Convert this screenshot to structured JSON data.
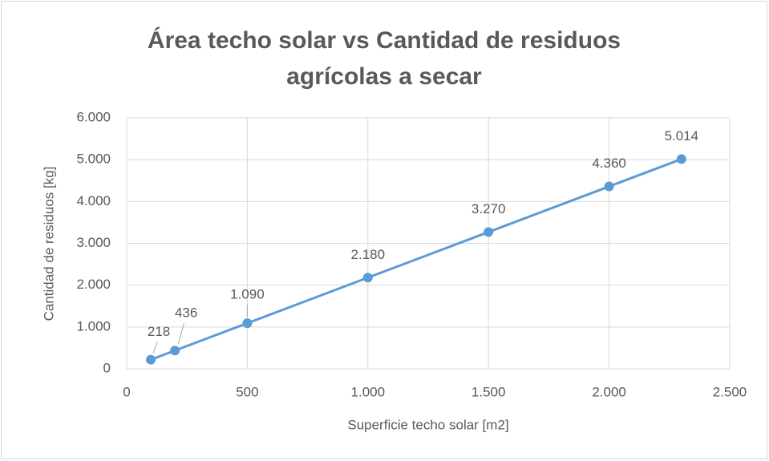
{
  "chart_data": {
    "type": "line",
    "title": [
      "Área techo solar vs Cantidad de residuos",
      "agrícolas a secar"
    ],
    "x_label": "Superficie techo solar [m2]",
    "y_label": "Cantidad de residuos [kg]",
    "x": [
      100,
      200,
      500,
      1000,
      1500,
      2000,
      2300
    ],
    "series": [
      {
        "name": "Cantidad de residuos",
        "color": "#5b9bd5",
        "values": [
          218,
          436,
          1090,
          2180,
          3270,
          4360,
          5014
        ],
        "value_labels": [
          "218",
          "436",
          "1.090",
          "2.180",
          "3.270",
          "4.360",
          "5.014"
        ]
      }
    ],
    "xlim": [
      0,
      2500
    ],
    "xticks": [
      0,
      500,
      {
        "value": 1000,
        "label": "1.000"
      },
      {
        "value": 1500,
        "label": "1.500"
      },
      {
        "value": 2000,
        "label": "2.000"
      },
      {
        "value": 2500,
        "label": "2.500"
      }
    ],
    "ylim": [
      0,
      6000
    ],
    "yticks": [
      0,
      {
        "value": 1000,
        "label": "1.000"
      },
      {
        "value": 2000,
        "label": "2.000"
      },
      {
        "value": 3000,
        "label": "3.000"
      },
      {
        "value": 4000,
        "label": "4.000"
      },
      {
        "value": 5000,
        "label": "5.000"
      },
      {
        "value": 6000,
        "label": "6.000"
      }
    ],
    "grid": true
  }
}
